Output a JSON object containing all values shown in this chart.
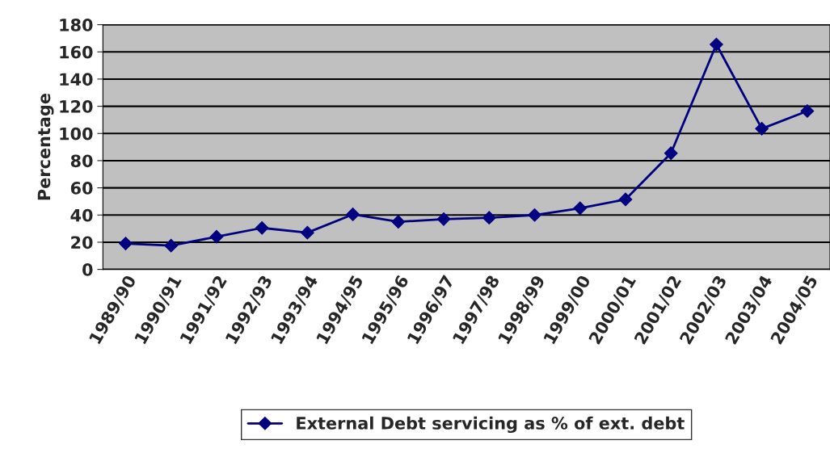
{
  "chart_data": {
    "type": "line",
    "ylabel": "Percentage",
    "categories": [
      "1989/90",
      "1990/91",
      "1991/92",
      "1992/93",
      "1993/94",
      "1994/95",
      "1995/96",
      "1996/97",
      "1997/98",
      "1998/99",
      "1999/00",
      "2000/01",
      "2001/02",
      "2002/03",
      "2003/04",
      "2004/05"
    ],
    "series": [
      {
        "name": "External Debt servicing as % of ext. debt",
        "color": "#000080",
        "values": [
          19,
          17.5,
          24,
          30.5,
          27,
          40.5,
          35,
          37,
          38,
          40,
          45,
          51.5,
          85.5,
          165.5,
          103.5,
          116.5
        ]
      }
    ],
    "ylim": [
      0,
      180
    ],
    "yticks": [
      0,
      20,
      40,
      60,
      80,
      100,
      120,
      140,
      160,
      180
    ],
    "grid": "y",
    "legend": "bottom",
    "marker": "diamond",
    "line_style": "solid"
  }
}
